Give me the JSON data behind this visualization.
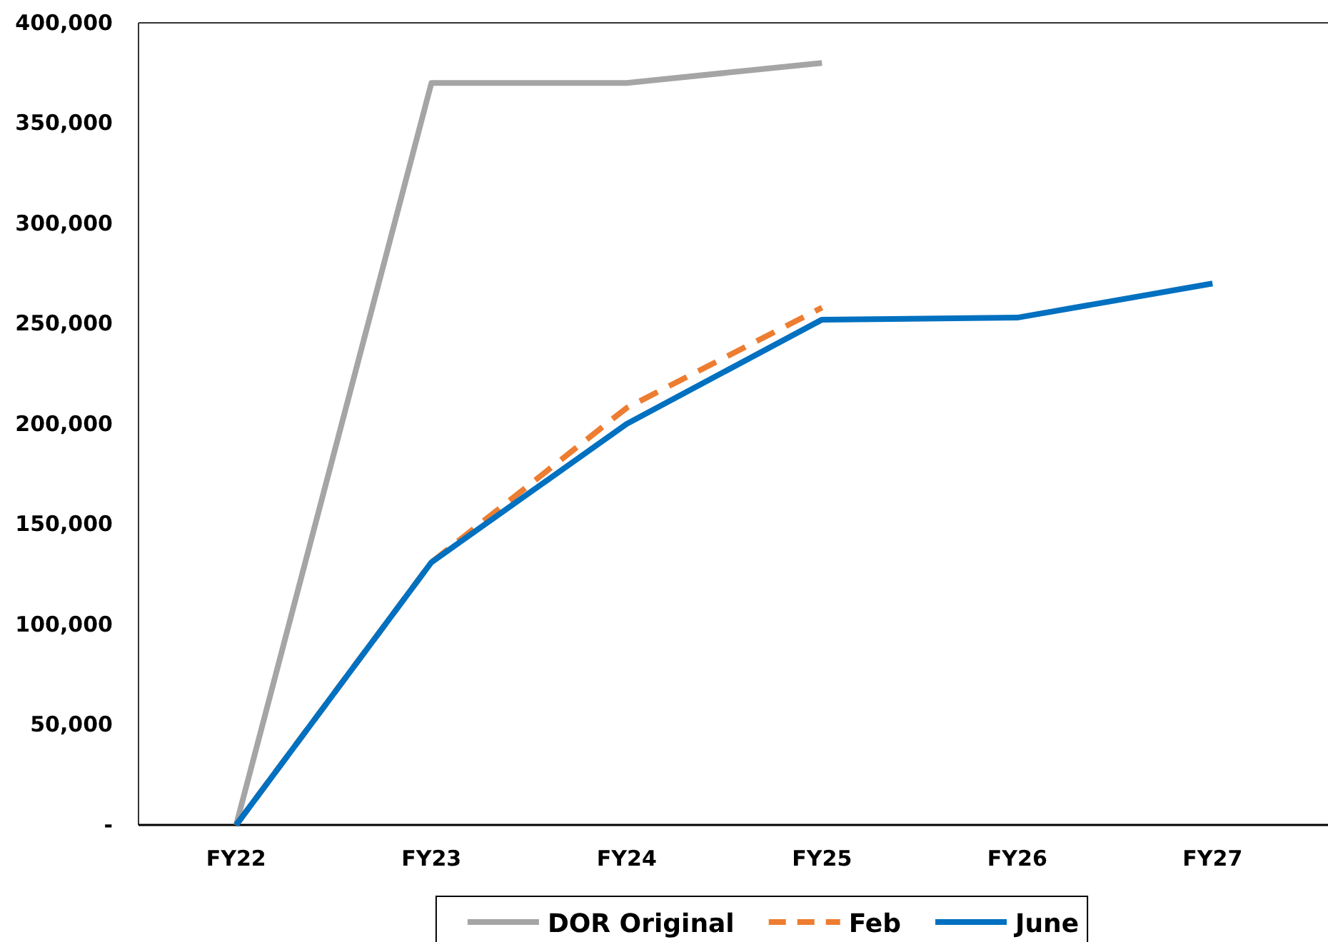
{
  "chart_data": {
    "type": "line",
    "categories": [
      "FY22",
      "FY23",
      "FY24",
      "FY25",
      "FY26",
      "FY27"
    ],
    "series": [
      {
        "name": "DOR Original",
        "color": "#a5a5a5",
        "values": [
          0,
          370000,
          370000,
          380000,
          null,
          null
        ],
        "line_style": "solid"
      },
      {
        "name": "Feb",
        "color": "#ed7d31",
        "values": [
          0,
          131000,
          208000,
          258000,
          null,
          null
        ],
        "line_style": "dashed"
      },
      {
        "name": "June",
        "color": "#0070c0",
        "values": [
          0,
          131000,
          200000,
          252000,
          253000,
          270000
        ],
        "line_style": "solid"
      }
    ],
    "ylim": [
      0,
      400000
    ],
    "yticks": [
      {
        "value": 0,
        "label": "-"
      },
      {
        "value": 50000,
        "label": "50,000"
      },
      {
        "value": 100000,
        "label": "100,000"
      },
      {
        "value": 150000,
        "label": "150,000"
      },
      {
        "value": 200000,
        "label": "200,000"
      },
      {
        "value": 250000,
        "label": "250,000"
      },
      {
        "value": 300000,
        "label": "300,000"
      },
      {
        "value": 350000,
        "label": "350,000"
      },
      {
        "value": 400000,
        "label": "400,000"
      }
    ],
    "grid": false,
    "legend": "bottom",
    "marker": "none"
  }
}
